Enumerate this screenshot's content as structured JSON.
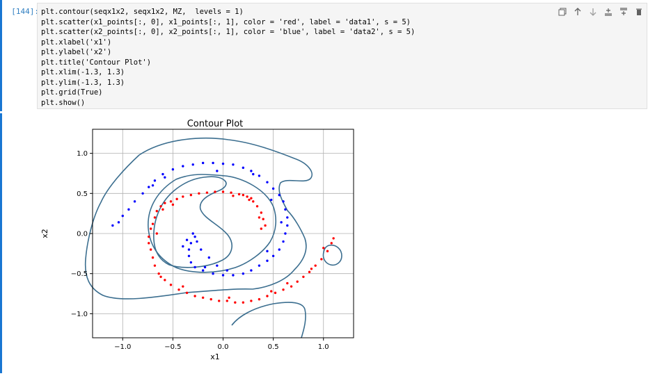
{
  "cell": {
    "prompt": "[144]:",
    "code_lines": [
      "plt.contour(seqx1x2, seqx1x2, MZ,  levels = 1)",
      "plt.scatter(x1_points[:, 0], x1_points[:, 1], color = 'red', label = 'data1', s = 5)",
      "plt.scatter(x2_points[:, 0], x2_points[:, 1], color = 'blue', label = 'data2', s = 5)",
      "plt.xlabel('x1')",
      "plt.ylabel('x2')",
      "plt.title('Contour Plot')",
      "plt.xlim(-1.3, 1.3)",
      "plt.ylim(-1.3, 1.3)",
      "plt.grid(True)",
      "plt.show()"
    ]
  },
  "toolbar": {
    "icons": [
      "duplicate-icon",
      "move-up-icon",
      "move-down-icon",
      "insert-above-icon",
      "insert-below-icon",
      "delete-icon"
    ]
  },
  "colors": {
    "selection": "#1976d2",
    "contour": "#3b6e8f",
    "data1": "#ff0000",
    "data2": "#0000ff"
  },
  "chart_data": {
    "type": "scatter",
    "title": "Contour Plot",
    "xlabel": "x1",
    "ylabel": "x2",
    "xlim": [
      -1.3,
      1.3
    ],
    "ylim": [
      -1.3,
      1.3
    ],
    "grid": true,
    "x_ticks": [
      "−1.0",
      "−0.5",
      "0.0",
      "0.5",
      "1.0"
    ],
    "y_ticks": [
      "1.0",
      "0.5",
      "0.0",
      "−0.5",
      "−1.0"
    ],
    "series": [
      {
        "color": "red",
        "points": [
          [
            -0.7,
            0.12
          ],
          [
            -0.68,
            0.2
          ],
          [
            -0.66,
            0.28
          ],
          [
            -0.62,
            0.34
          ],
          [
            -0.58,
            0.38
          ],
          [
            -0.52,
            0.4
          ],
          [
            -0.46,
            0.43
          ],
          [
            -0.4,
            0.46
          ],
          [
            -0.32,
            0.48
          ],
          [
            -0.24,
            0.5
          ],
          [
            -0.16,
            0.51
          ],
          [
            -0.08,
            0.52
          ],
          [
            0.0,
            0.52
          ],
          [
            0.08,
            0.51
          ],
          [
            0.16,
            0.49
          ],
          [
            0.24,
            0.46
          ],
          [
            0.3,
            0.4
          ],
          [
            0.34,
            0.34
          ],
          [
            0.38,
            0.26
          ],
          [
            0.4,
            0.18
          ],
          [
            0.42,
            0.1
          ],
          [
            0.36,
            0.2
          ],
          [
            0.28,
            0.44
          ],
          [
            0.2,
            0.48
          ],
          [
            -0.72,
            0.06
          ],
          [
            -0.74,
            -0.04
          ],
          [
            -0.74,
            -0.12
          ],
          [
            -0.72,
            -0.2
          ],
          [
            -0.7,
            -0.3
          ],
          [
            -0.68,
            -0.4
          ],
          [
            -0.64,
            -0.5
          ],
          [
            -0.58,
            -0.58
          ],
          [
            -0.52,
            -0.64
          ],
          [
            -0.44,
            -0.7
          ],
          [
            -0.36,
            -0.74
          ],
          [
            -0.28,
            -0.78
          ],
          [
            -0.2,
            -0.8
          ],
          [
            -0.12,
            -0.82
          ],
          [
            -0.04,
            -0.84
          ],
          [
            0.04,
            -0.84
          ],
          [
            0.12,
            -0.86
          ],
          [
            0.2,
            -0.86
          ],
          [
            0.28,
            -0.84
          ],
          [
            0.36,
            -0.82
          ],
          [
            0.44,
            -0.78
          ],
          [
            0.52,
            -0.74
          ],
          [
            0.6,
            -0.7
          ],
          [
            0.68,
            -0.66
          ],
          [
            0.74,
            -0.6
          ],
          [
            0.8,
            -0.54
          ],
          [
            0.86,
            -0.48
          ],
          [
            0.92,
            -0.4
          ],
          [
            0.98,
            -0.32
          ],
          [
            1.04,
            -0.22
          ],
          [
            1.08,
            -0.12
          ],
          [
            1.1,
            -0.06
          ],
          [
            -0.62,
            -0.54
          ],
          [
            -0.4,
            -0.66
          ],
          [
            0.06,
            -0.8
          ],
          [
            0.48,
            -0.72
          ],
          [
            0.64,
            -0.62
          ],
          [
            0.88,
            -0.44
          ],
          [
            1.0,
            -0.18
          ],
          [
            -0.6,
            0.3
          ],
          [
            -0.5,
            0.36
          ],
          [
            0.1,
            0.47
          ],
          [
            0.26,
            0.42
          ],
          [
            0.38,
            0.06
          ],
          [
            -0.66,
            0.0
          ]
        ]
      },
      {
        "color": "blue",
        "points": [
          [
            -1.1,
            0.1
          ],
          [
            -1.04,
            0.14
          ],
          [
            -1.0,
            0.22
          ],
          [
            -0.94,
            0.3
          ],
          [
            -0.88,
            0.4
          ],
          [
            -0.8,
            0.5
          ],
          [
            -0.74,
            0.58
          ],
          [
            -0.68,
            0.66
          ],
          [
            -0.6,
            0.74
          ],
          [
            -0.5,
            0.8
          ],
          [
            -0.4,
            0.84
          ],
          [
            -0.3,
            0.86
          ],
          [
            -0.2,
            0.88
          ],
          [
            -0.1,
            0.88
          ],
          [
            0.0,
            0.87
          ],
          [
            0.1,
            0.86
          ],
          [
            0.2,
            0.82
          ],
          [
            0.28,
            0.78
          ],
          [
            0.36,
            0.72
          ],
          [
            0.44,
            0.64
          ],
          [
            0.5,
            0.56
          ],
          [
            0.56,
            0.48
          ],
          [
            0.6,
            0.4
          ],
          [
            0.62,
            0.3
          ],
          [
            0.64,
            0.2
          ],
          [
            0.64,
            0.1
          ],
          [
            0.62,
            0.0
          ],
          [
            0.6,
            -0.1
          ],
          [
            0.56,
            -0.2
          ],
          [
            0.5,
            -0.28
          ],
          [
            0.44,
            -0.34
          ],
          [
            0.36,
            -0.4
          ],
          [
            0.28,
            -0.46
          ],
          [
            0.2,
            -0.5
          ],
          [
            0.1,
            -0.52
          ],
          [
            0.0,
            -0.52
          ],
          [
            -0.1,
            -0.5
          ],
          [
            -0.2,
            -0.46
          ],
          [
            -0.28,
            -0.42
          ],
          [
            -0.32,
            -0.36
          ],
          [
            -0.34,
            -0.28
          ],
          [
            -0.34,
            -0.2
          ],
          [
            -0.32,
            -0.12
          ],
          [
            -0.28,
            -0.04
          ],
          [
            -0.26,
            -0.1
          ],
          [
            -0.3,
            0.0
          ],
          [
            -0.36,
            -0.08
          ],
          [
            -0.4,
            -0.16
          ],
          [
            -0.22,
            -0.2
          ],
          [
            -0.14,
            -0.3
          ],
          [
            -0.06,
            -0.4
          ],
          [
            -0.7,
            0.6
          ],
          [
            -0.58,
            0.7
          ],
          [
            -0.06,
            0.78
          ],
          [
            0.3,
            0.74
          ],
          [
            0.48,
            0.42
          ],
          [
            0.58,
            0.14
          ],
          [
            0.44,
            -0.22
          ],
          [
            0.04,
            -0.46
          ],
          [
            -0.18,
            -0.42
          ]
        ]
      }
    ]
  }
}
